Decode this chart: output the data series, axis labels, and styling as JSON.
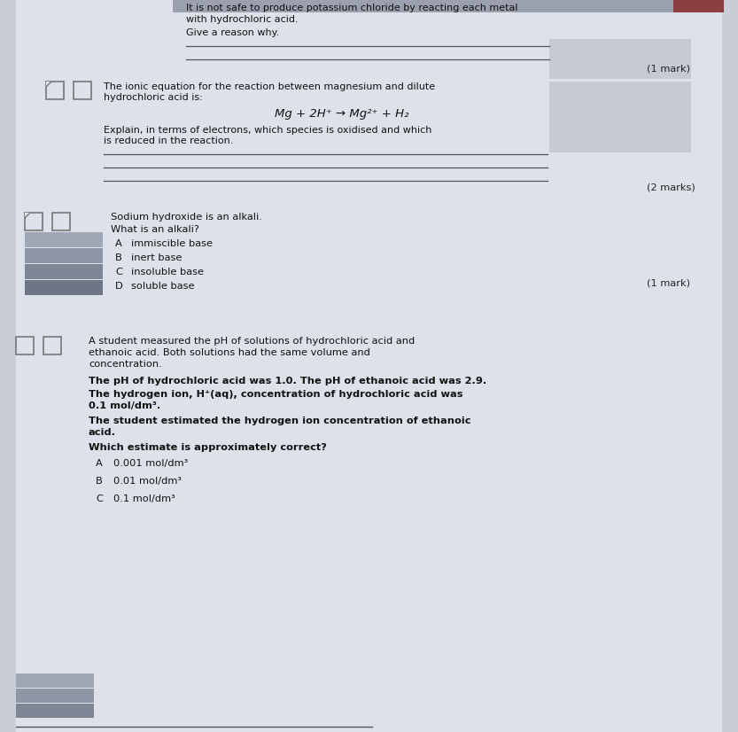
{
  "bg_color": "#c8cdd8",
  "paper_color": "#dde1e9",
  "answer_shade_color": "#c5cad5",
  "dark_shade": "#9aa0ae",
  "text_color": "#111111",
  "mark_color": "#222222",
  "line_color": "#444444",
  "checkbox_border": "#888888",
  "section1": {
    "header_line1": "It is not safe to produce potassium chloride by reacting each metal",
    "header_line2": "with hydrochloric acid.",
    "give_reason": "Give a reason why.",
    "mark1": "(1 mark)",
    "ionic_intro1": "The ionic equation for the reaction between magnesium and dilute",
    "ionic_intro2": "hydrochloric acid is:",
    "equation": "Mg + 2H⁺ → Mg²⁺ + H₂",
    "explain1": "Explain, in terms of electrons, which species is oxidised and which",
    "explain2": "is reduced in the reaction.",
    "mark2": "(2 marks)"
  },
  "section2": {
    "intro": "Sodium hydroxide is an alkali.",
    "question": "What is an alkali?",
    "opt_A": "immiscible base",
    "opt_B": "inert base",
    "opt_C": "insoluble base",
    "opt_D": "soluble base",
    "mark": "(1 mark)"
  },
  "section3": {
    "intro1": "A student measured the pH of solutions of hydrochloric acid and",
    "intro2": "ethanoic acid. Both solutions had the same volume and",
    "intro3": "concentration.",
    "line1a": "The pH of hydrochloric acid was 1.0. The pH of ethanoic acid was 2.9.",
    "line2a": "The hydrogen ion, H⁺(aq), concentration of hydrochloric acid was",
    "line2b": "0.1 mol/dm³.",
    "line3a": "The student estimated the hydrogen ion concentration of ethanoic",
    "line3b": "acid.",
    "question": "Which estimate is approximately correct?",
    "opt_A": "0.001 mol/dm³",
    "opt_B": "0.01 mol/dm³",
    "opt_C": "0.1 mol/dm³"
  }
}
